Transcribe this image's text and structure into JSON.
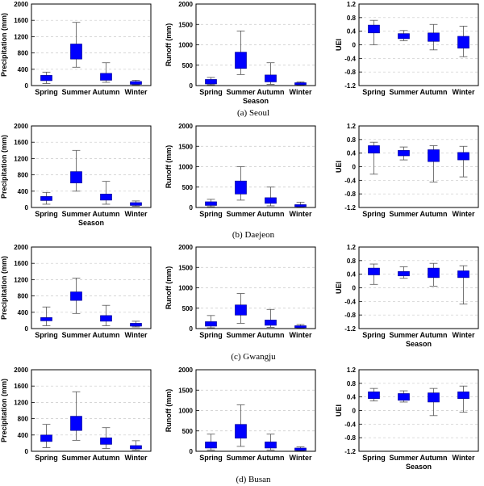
{
  "figure": {
    "season_axis_label": "Season",
    "colors": {
      "box": "#0000ff",
      "grid": "#c8c8c8",
      "axis": "#000000"
    }
  },
  "rows": [
    {
      "caption": "(a)  Seoul"
    },
    {
      "caption": "(b)  Daejeon"
    },
    {
      "caption": "(c)  Gwangju"
    },
    {
      "caption": "(d)  Busan"
    }
  ],
  "chart_data": [
    {
      "type": "box",
      "row": 0,
      "col": 0,
      "ylabel": "Precipitation (mm)",
      "xlabel": "",
      "categories": [
        "Spring",
        "Summer",
        "Autumn",
        "Winter"
      ],
      "ylim": [
        0,
        2000
      ],
      "yticks": [
        0,
        400,
        800,
        1200,
        1600,
        2000
      ],
      "yticklabels": [
        "0",
        "400",
        "800",
        "1200",
        "1600",
        "2000"
      ],
      "boxes": [
        {
          "min": 50,
          "q1": 120,
          "q3": 250,
          "max": 330
        },
        {
          "min": 450,
          "q1": 650,
          "q3": 1020,
          "max": 1550
        },
        {
          "min": 80,
          "q1": 130,
          "q3": 300,
          "max": 560
        },
        {
          "min": 20,
          "q1": 30,
          "q3": 100,
          "max": 130
        }
      ]
    },
    {
      "type": "box",
      "row": 0,
      "col": 1,
      "ylabel": "Runoff (mm)",
      "xlabel": "Season",
      "categories": [
        "Spring",
        "Summer",
        "Autumn",
        "Winter"
      ],
      "ylim": [
        0,
        2000
      ],
      "yticks": [
        0,
        500,
        1000,
        1500,
        2000
      ],
      "yticklabels": [
        "0",
        "500",
        "1000",
        "1500",
        "2000"
      ],
      "boxes": [
        {
          "min": 20,
          "q1": 40,
          "q3": 150,
          "max": 200
        },
        {
          "min": 270,
          "q1": 420,
          "q3": 820,
          "max": 1340
        },
        {
          "min": 30,
          "q1": 90,
          "q3": 260,
          "max": 560
        },
        {
          "min": 10,
          "q1": 20,
          "q3": 70,
          "max": 90
        }
      ]
    },
    {
      "type": "box",
      "row": 0,
      "col": 2,
      "ylabel": "UEI",
      "xlabel": "",
      "categories": [
        "Spring",
        "Summer",
        "Autumn",
        "Winter"
      ],
      "ylim": [
        -1.2,
        1.2
      ],
      "yticks": [
        -1.2,
        -0.8,
        -0.4,
        0,
        0.4,
        0.8,
        1.2
      ],
      "yticklabels": [
        "-1.2",
        "-0.8",
        "-0.4",
        "0",
        "0.4",
        "0.8",
        "1.2"
      ],
      "boxes": [
        {
          "min": 0.0,
          "q1": 0.35,
          "q3": 0.58,
          "max": 0.72
        },
        {
          "min": 0.12,
          "q1": 0.18,
          "q3": 0.33,
          "max": 0.42
        },
        {
          "min": -0.15,
          "q1": 0.1,
          "q3": 0.35,
          "max": 0.6
        },
        {
          "min": -0.35,
          "q1": -0.1,
          "q3": 0.25,
          "max": 0.55
        }
      ]
    },
    {
      "type": "box",
      "row": 1,
      "col": 0,
      "ylabel": "Precipitation (mm)",
      "xlabel": "Season",
      "categories": [
        "Spring",
        "Summer",
        "Autumn",
        "Winter"
      ],
      "ylim": [
        0,
        2000
      ],
      "yticks": [
        0,
        400,
        800,
        1200,
        1600,
        2000
      ],
      "yticklabels": [
        "0",
        "400",
        "800",
        "1200",
        "1600",
        "2000"
      ],
      "boxes": [
        {
          "min": 80,
          "q1": 170,
          "q3": 270,
          "max": 370
        },
        {
          "min": 400,
          "q1": 600,
          "q3": 880,
          "max": 1400
        },
        {
          "min": 80,
          "q1": 180,
          "q3": 330,
          "max": 640
        },
        {
          "min": 30,
          "q1": 50,
          "q3": 120,
          "max": 160
        }
      ]
    },
    {
      "type": "box",
      "row": 1,
      "col": 1,
      "ylabel": "Runoff (mm)",
      "xlabel": "",
      "categories": [
        "Spring",
        "Summer",
        "Autumn",
        "Winter"
      ],
      "ylim": [
        0,
        2000
      ],
      "yticks": [
        0,
        500,
        1000,
        1500,
        2000
      ],
      "yticklabels": [
        "0",
        "500",
        "1000",
        "1500",
        "2000"
      ],
      "boxes": [
        {
          "min": 20,
          "q1": 50,
          "q3": 140,
          "max": 200
        },
        {
          "min": 180,
          "q1": 330,
          "q3": 650,
          "max": 1000
        },
        {
          "min": 40,
          "q1": 100,
          "q3": 240,
          "max": 500
        },
        {
          "min": 10,
          "q1": 20,
          "q3": 70,
          "max": 130
        }
      ]
    },
    {
      "type": "box",
      "row": 1,
      "col": 2,
      "ylabel": "UEI",
      "xlabel": "",
      "categories": [
        "Spring",
        "Summer",
        "Autumn",
        "Winter"
      ],
      "ylim": [
        -1.2,
        1.2
      ],
      "yticks": [
        -1.2,
        -0.8,
        -0.4,
        0,
        0.4,
        0.8,
        1.2
      ],
      "yticklabels": [
        "-1.2",
        "-0.8",
        "-0.4",
        "0",
        "0.4",
        "0.8",
        "1.2"
      ],
      "boxes": [
        {
          "min": -0.22,
          "q1": 0.4,
          "q3": 0.62,
          "max": 0.72
        },
        {
          "min": 0.2,
          "q1": 0.32,
          "q3": 0.48,
          "max": 0.58
        },
        {
          "min": -0.45,
          "q1": 0.15,
          "q3": 0.5,
          "max": 0.62
        },
        {
          "min": -0.3,
          "q1": 0.2,
          "q3": 0.42,
          "max": 0.6
        }
      ]
    },
    {
      "type": "box",
      "row": 2,
      "col": 0,
      "ylabel": "Precipitation (mm)",
      "xlabel": "",
      "categories": [
        "Spring",
        "Summer",
        "Autumn",
        "Winter"
      ],
      "ylim": [
        0,
        2000
      ],
      "yticks": [
        0,
        400,
        800,
        1200,
        1600,
        2000
      ],
      "yticklabels": [
        "0",
        "400",
        "800",
        "1200",
        "1600",
        "2000"
      ],
      "boxes": [
        {
          "min": 70,
          "q1": 190,
          "q3": 270,
          "max": 530
        },
        {
          "min": 370,
          "q1": 690,
          "q3": 900,
          "max": 1240
        },
        {
          "min": 70,
          "q1": 180,
          "q3": 320,
          "max": 570
        },
        {
          "min": 40,
          "q1": 60,
          "q3": 130,
          "max": 180
        }
      ]
    },
    {
      "type": "box",
      "row": 2,
      "col": 1,
      "ylabel": "Runoff (mm)",
      "xlabel": "",
      "categories": [
        "Spring",
        "Summer",
        "Autumn",
        "Winter"
      ],
      "ylim": [
        0,
        2000
      ],
      "yticks": [
        0,
        500,
        1000,
        1500,
        2000
      ],
      "yticklabels": [
        "0",
        "500",
        "1000",
        "1500",
        "2000"
      ],
      "boxes": [
        {
          "min": 20,
          "q1": 60,
          "q3": 170,
          "max": 320
        },
        {
          "min": 130,
          "q1": 330,
          "q3": 580,
          "max": 860
        },
        {
          "min": 30,
          "q1": 80,
          "q3": 210,
          "max": 470
        },
        {
          "min": 10,
          "q1": 20,
          "q3": 70,
          "max": 100
        }
      ]
    },
    {
      "type": "box",
      "row": 2,
      "col": 2,
      "ylabel": "UEI",
      "xlabel": "Season",
      "categories": [
        "Spring",
        "Summer",
        "Autumn",
        "Winter"
      ],
      "ylim": [
        -1.2,
        1.2
      ],
      "yticks": [
        -1.2,
        -0.8,
        -0.4,
        0,
        0.4,
        0.8,
        1.2
      ],
      "yticklabels": [
        "-1.2",
        "-0.8",
        "-0.4",
        "0",
        "0.4",
        "0.8",
        "1.2"
      ],
      "boxes": [
        {
          "min": 0.1,
          "q1": 0.38,
          "q3": 0.58,
          "max": 0.7
        },
        {
          "min": 0.28,
          "q1": 0.35,
          "q3": 0.48,
          "max": 0.62
        },
        {
          "min": 0.05,
          "q1": 0.3,
          "q3": 0.58,
          "max": 0.72
        },
        {
          "min": -0.48,
          "q1": 0.3,
          "q3": 0.5,
          "max": 0.65
        }
      ]
    },
    {
      "type": "box",
      "row": 3,
      "col": 0,
      "ylabel": "Precipitation (mm)",
      "xlabel": "",
      "categories": [
        "Spring",
        "Summer",
        "Autumn",
        "Winter"
      ],
      "ylim": [
        0,
        2000
      ],
      "yticks": [
        0,
        400,
        800,
        1200,
        1600,
        2000
      ],
      "yticklabels": [
        "0",
        "400",
        "800",
        "1200",
        "1600",
        "2000"
      ],
      "boxes": [
        {
          "min": 90,
          "q1": 240,
          "q3": 400,
          "max": 660
        },
        {
          "min": 270,
          "q1": 510,
          "q3": 860,
          "max": 1460
        },
        {
          "min": 70,
          "q1": 170,
          "q3": 330,
          "max": 580
        },
        {
          "min": 30,
          "q1": 60,
          "q3": 140,
          "max": 260
        }
      ]
    },
    {
      "type": "box",
      "row": 3,
      "col": 1,
      "ylabel": "Runoff (mm)",
      "xlabel": "",
      "categories": [
        "Spring",
        "Summer",
        "Autumn",
        "Winter"
      ],
      "ylim": [
        0,
        2000
      ],
      "yticks": [
        0,
        500,
        1000,
        1500,
        2000
      ],
      "yticklabels": [
        "0",
        "500",
        "1000",
        "1500",
        "2000"
      ],
      "boxes": [
        {
          "min": 30,
          "q1": 80,
          "q3": 230,
          "max": 420
        },
        {
          "min": 120,
          "q1": 320,
          "q3": 660,
          "max": 1140
        },
        {
          "min": 30,
          "q1": 80,
          "q3": 230,
          "max": 420
        },
        {
          "min": 10,
          "q1": 20,
          "q3": 80,
          "max": 110
        }
      ]
    },
    {
      "type": "box",
      "row": 3,
      "col": 2,
      "ylabel": "UEI",
      "xlabel": "Season",
      "categories": [
        "Spring",
        "Summer",
        "Autumn",
        "Winter"
      ],
      "ylim": [
        -1.2,
        1.2
      ],
      "yticks": [
        -1.2,
        -0.8,
        -0.4,
        0,
        0.4,
        0.8,
        1.2
      ],
      "yticklabels": [
        "-1.2",
        "-0.8",
        "-0.4",
        "0",
        "0.4",
        "0.8",
        "1.2"
      ],
      "boxes": [
        {
          "min": 0.28,
          "q1": 0.35,
          "q3": 0.55,
          "max": 0.65
        },
        {
          "min": 0.25,
          "q1": 0.3,
          "q3": 0.5,
          "max": 0.58
        },
        {
          "min": -0.15,
          "q1": 0.25,
          "q3": 0.52,
          "max": 0.65
        },
        {
          "min": -0.05,
          "q1": 0.35,
          "q3": 0.55,
          "max": 0.72
        }
      ]
    }
  ]
}
